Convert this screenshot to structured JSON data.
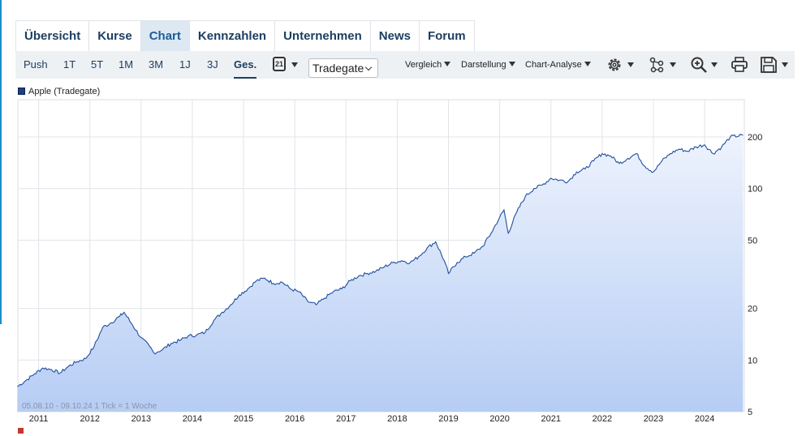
{
  "nav": {
    "tabs": [
      {
        "label": "Übersicht",
        "active": false
      },
      {
        "label": "Kurse",
        "active": false
      },
      {
        "label": "Chart",
        "active": true
      },
      {
        "label": "Kennzahlen",
        "active": false
      },
      {
        "label": "Unternehmen",
        "active": false
      },
      {
        "label": "News",
        "active": false
      },
      {
        "label": "Forum",
        "active": false
      }
    ]
  },
  "toolbar": {
    "ranges": [
      "Push",
      "1T",
      "5T",
      "1M",
      "3M",
      "1J",
      "3J",
      "Ges."
    ],
    "active_range": "Ges.",
    "calendar_day": "21",
    "exchange": "Tradegate",
    "dropdowns": [
      "Vergleich",
      "Darstellung",
      "Chart-Analyse"
    ],
    "icons": [
      "settings-icon",
      "indicators-icon",
      "zoom-icon",
      "print-icon",
      "save-icon"
    ]
  },
  "colors": {
    "accent": "#1c3f62",
    "line": "#1f4fa0",
    "area_top": "#eef3fd",
    "area_bottom": "#b6cdf4",
    "side_accent": "#1a8fc9"
  },
  "chart_data": {
    "type": "area",
    "legend": [
      "Apple (Tradegate)"
    ],
    "y_scale": "log",
    "ylim": [
      5,
      330
    ],
    "y_ticks": [
      5,
      10,
      20,
      50,
      100,
      200
    ],
    "x_tick_labels": [
      "2011",
      "2012",
      "2013",
      "2014",
      "2015",
      "2016",
      "2017",
      "2018",
      "2019",
      "2020",
      "2021",
      "2022",
      "2023",
      "2024"
    ],
    "period_note": "05.08.10 - 09.10.24   1 Tick = 1 Woche",
    "series": [
      {
        "x": [
          "2010-08",
          "2010-10",
          "2010-12",
          "2011-02",
          "2011-04",
          "2011-06",
          "2011-08",
          "2011-10",
          "2011-12",
          "2012-02",
          "2012-04",
          "2012-06",
          "2012-08",
          "2012-09",
          "2012-11",
          "2013-01",
          "2013-03",
          "2013-04",
          "2013-06",
          "2013-08",
          "2013-10",
          "2013-12",
          "2014-02",
          "2014-04",
          "2014-06",
          "2014-08",
          "2014-10",
          "2014-12",
          "2015-02",
          "2015-04",
          "2015-06",
          "2015-08",
          "2015-10",
          "2015-12",
          "2016-02",
          "2016-04",
          "2016-06",
          "2016-08",
          "2016-10",
          "2016-12",
          "2017-02",
          "2017-04",
          "2017-06",
          "2017-08",
          "2017-10",
          "2017-12",
          "2018-02",
          "2018-04",
          "2018-06",
          "2018-08",
          "2018-10",
          "2018-12",
          "2019-01",
          "2019-03",
          "2019-05",
          "2019-07",
          "2019-09",
          "2019-11",
          "2020-01",
          "2020-02",
          "2020-03",
          "2020-05",
          "2020-07",
          "2020-09",
          "2020-11",
          "2021-01",
          "2021-03",
          "2021-05",
          "2021-07",
          "2021-09",
          "2021-11",
          "2022-01",
          "2022-03",
          "2022-05",
          "2022-07",
          "2022-09",
          "2022-11",
          "2023-01",
          "2023-03",
          "2023-05",
          "2023-07",
          "2023-09",
          "2023-11",
          "2024-01",
          "2024-03",
          "2024-05",
          "2024-07",
          "2024-10"
        ],
        "values": [
          7.0,
          7.6,
          8.3,
          9.0,
          8.8,
          8.4,
          9.2,
          9.8,
          10.2,
          12.0,
          15.5,
          16.5,
          18.0,
          19.0,
          16.0,
          13.5,
          12.0,
          11.0,
          11.5,
          12.5,
          13.0,
          13.8,
          14.0,
          14.5,
          17.0,
          19.0,
          21.0,
          24.0,
          26.0,
          29.0,
          30.0,
          28.0,
          28.5,
          26.0,
          25.0,
          22.0,
          21.0,
          23.0,
          25.0,
          26.0,
          29.0,
          31.0,
          32.0,
          33.0,
          35.0,
          37.0,
          38.0,
          37.0,
          40.0,
          45.0,
          49.0,
          38.0,
          32.0,
          37.0,
          40.0,
          42.0,
          46.0,
          55.0,
          68.0,
          75.0,
          55.0,
          73.0,
          90.0,
          100.0,
          105.0,
          115.0,
          112.0,
          110.0,
          125.0,
          130.0,
          145.0,
          160.0,
          155.0,
          140.0,
          150.0,
          160.0,
          135.0,
          125.0,
          145.0,
          160.0,
          170.0,
          165.0,
          175.0,
          180.0,
          160.0,
          175.0,
          200.0,
          205.0
        ]
      }
    ]
  }
}
